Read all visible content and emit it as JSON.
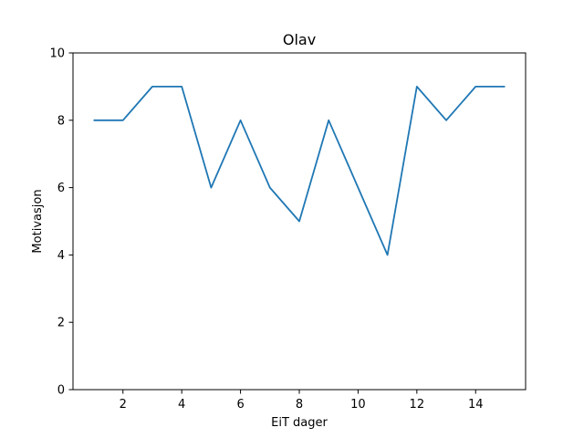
{
  "chart_data": {
    "type": "line",
    "title": "Olav",
    "xlabel": "EiT dager",
    "ylabel": "Motivasjon",
    "xlim": [
      0.3,
      15.7
    ],
    "ylim": [
      0,
      10
    ],
    "xticks": [
      2,
      4,
      6,
      8,
      10,
      12,
      14
    ],
    "yticks": [
      0,
      2,
      4,
      6,
      8,
      10
    ],
    "grid": false,
    "series": [
      {
        "color": "#1f77b4",
        "x": [
          1,
          2,
          3,
          4,
          5,
          6,
          7,
          8,
          9,
          10,
          11,
          12,
          13,
          14,
          15
        ],
        "y": [
          8,
          8,
          9,
          9,
          6,
          8,
          6,
          5,
          8,
          6,
          4,
          9,
          8,
          9,
          9
        ]
      }
    ]
  }
}
